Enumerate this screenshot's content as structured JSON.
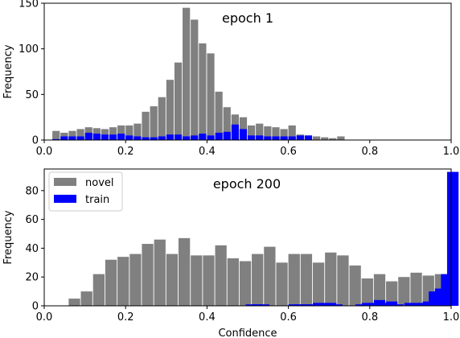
{
  "chart_data": [
    {
      "type": "bar",
      "title": "epoch 1",
      "xlabel": "",
      "ylabel": "Frequency",
      "xlim": [
        0.0,
        1.0
      ],
      "ylim": [
        0,
        150
      ],
      "x_ticks": [
        "0.0",
        "0.2",
        "0.4",
        "0.6",
        "0.8",
        "1.0"
      ],
      "y_ticks": [
        "0",
        "50",
        "100",
        "150"
      ],
      "bin_width": 0.02,
      "series": [
        {
          "name": "novel",
          "color": "#808080",
          "bin_starts": [
            0.02,
            0.04,
            0.06,
            0.08,
            0.1,
            0.12,
            0.14,
            0.16,
            0.18,
            0.2,
            0.22,
            0.24,
            0.26,
            0.28,
            0.3,
            0.32,
            0.34,
            0.36,
            0.38,
            0.4,
            0.42,
            0.44,
            0.46,
            0.48,
            0.5,
            0.52,
            0.54,
            0.56,
            0.58,
            0.6,
            0.62,
            0.64,
            0.66,
            0.68,
            0.7,
            0.72
          ],
          "values": [
            10,
            8,
            10,
            12,
            14,
            13,
            12,
            14,
            16,
            16,
            18,
            31,
            37,
            47,
            66,
            85,
            145,
            132,
            106,
            95,
            53,
            36,
            28,
            25,
            16,
            18,
            15,
            14,
            12,
            16,
            6,
            5,
            4,
            3,
            2,
            4
          ]
        },
        {
          "name": "train",
          "color": "#0000ff",
          "bin_starts": [
            0.02,
            0.04,
            0.06,
            0.08,
            0.1,
            0.12,
            0.14,
            0.16,
            0.18,
            0.2,
            0.22,
            0.24,
            0.26,
            0.28,
            0.3,
            0.32,
            0.34,
            0.36,
            0.38,
            0.4,
            0.42,
            0.44,
            0.46,
            0.48,
            0.5,
            0.52,
            0.54,
            0.56,
            0.58,
            0.6,
            0.62,
            0.64
          ],
          "values": [
            1,
            4,
            4,
            4,
            8,
            7,
            6,
            6,
            7,
            5,
            4,
            3,
            3,
            4,
            6,
            6,
            4,
            5,
            7,
            5,
            8,
            9,
            17,
            12,
            5,
            5,
            4,
            4,
            4,
            4,
            5,
            5
          ]
        }
      ]
    },
    {
      "type": "bar",
      "title": "epoch 200",
      "xlabel": "Confidence",
      "ylabel": "Frequency",
      "xlim": [
        0.0,
        1.0
      ],
      "ylim": [
        0,
        95
      ],
      "x_ticks": [
        "0.0",
        "0.2",
        "0.4",
        "0.6",
        "0.8",
        "1.0"
      ],
      "y_ticks": [
        "0",
        "20",
        "40",
        "60",
        "80"
      ],
      "bin_width": 0.03,
      "legend": {
        "location": "upper-left",
        "entries": [
          "novel",
          "train"
        ]
      },
      "series": [
        {
          "name": "novel",
          "color": "#808080",
          "bin_starts": [
            0.06,
            0.09,
            0.12,
            0.15,
            0.18,
            0.21,
            0.24,
            0.27,
            0.3,
            0.33,
            0.36,
            0.39,
            0.42,
            0.45,
            0.48,
            0.51,
            0.54,
            0.57,
            0.6,
            0.63,
            0.66,
            0.69,
            0.72,
            0.75,
            0.78,
            0.81,
            0.84,
            0.87,
            0.9,
            0.93,
            0.96
          ],
          "values": [
            5,
            10,
            22,
            32,
            34,
            36,
            43,
            46,
            36,
            47,
            35,
            35,
            42,
            33,
            31,
            36,
            41,
            30,
            36,
            36,
            30,
            37,
            35,
            28,
            19,
            22,
            17,
            20,
            23,
            21,
            22
          ]
        },
        {
          "name": "train",
          "color": "#0000ff",
          "bin_starts": [
            0.495,
            0.51,
            0.525,
            0.6,
            0.615,
            0.63,
            0.645,
            0.66,
            0.675,
            0.69,
            0.705,
            0.765,
            0.78,
            0.795,
            0.81,
            0.825,
            0.84,
            0.855,
            0.885,
            0.9,
            0.915,
            0.93,
            0.945,
            0.96,
            0.975,
            0.99
          ],
          "values": [
            1,
            1,
            1,
            1,
            1,
            1,
            1,
            2,
            2,
            2,
            1,
            1,
            2,
            2,
            4,
            2,
            3,
            1,
            2,
            2,
            2,
            3,
            10,
            12,
            22,
            93
          ]
        }
      ]
    }
  ]
}
